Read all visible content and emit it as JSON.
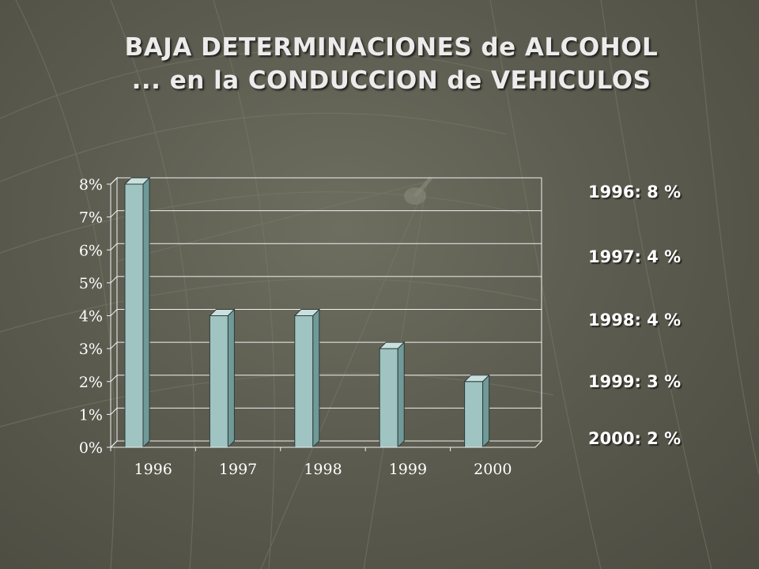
{
  "slide": {
    "title_line1": "BAJA DETERMINACIONES de ALCOHOL",
    "title_line2": "... en la CONDUCCION de VEHICULOS",
    "side_labels": [
      "1996: 8 %",
      "1997: 4 %",
      "1998: 4 %",
      "1999: 3 %",
      "2000: 2 %"
    ]
  },
  "colors": {
    "bar_front": "#9fc4c2",
    "bar_side": "#6f9a97",
    "bar_top": "#c9e0de",
    "grid": "#f2f2f2",
    "text": "#ffffff"
  },
  "chart_data": {
    "type": "bar",
    "categories": [
      "1996",
      "1997",
      "1998",
      "1999",
      "2000"
    ],
    "values": [
      8,
      4,
      4,
      3,
      2
    ],
    "ylim": [
      0,
      8
    ],
    "yticks": [
      0,
      1,
      2,
      3,
      4,
      5,
      6,
      7,
      8
    ],
    "ytick_labels": [
      "0%",
      "1%",
      "2%",
      "3%",
      "4%",
      "5%",
      "6%",
      "7%",
      "8%"
    ],
    "grid": true,
    "style": "3d-bar",
    "xlabel": "",
    "ylabel": ""
  }
}
